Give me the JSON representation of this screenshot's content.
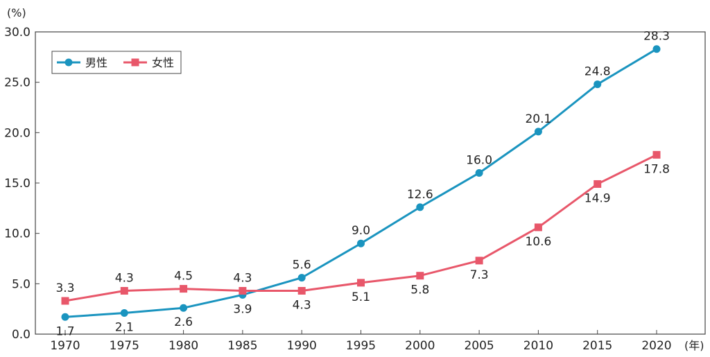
{
  "chart_data": {
    "type": "line",
    "y_unit": "(%)",
    "x_unit": "(年)",
    "categories": [
      "1970",
      "1975",
      "1980",
      "1985",
      "1990",
      "1995",
      "2000",
      "2005",
      "2010",
      "2015",
      "2020"
    ],
    "y_ticks": [
      "0.0",
      "5.0",
      "10.0",
      "15.0",
      "20.0",
      "25.0",
      "30.0"
    ],
    "ylim": [
      0,
      30
    ],
    "grid": false,
    "legend_position": "top-left",
    "series": [
      {
        "name": "男性",
        "color": "#1a94bf",
        "marker": "circle",
        "values": [
          1.7,
          2.1,
          2.6,
          3.9,
          5.6,
          9.0,
          12.6,
          16.0,
          20.1,
          24.8,
          28.3
        ],
        "labels": [
          "1.7",
          "2.1",
          "2.6",
          "3.9",
          "5.6",
          "9.0",
          "12.6",
          "16.0",
          "20.1",
          "24.8",
          "28.3"
        ]
      },
      {
        "name": "女性",
        "color": "#e8576a",
        "marker": "square",
        "values": [
          3.3,
          4.3,
          4.5,
          4.3,
          4.3,
          5.1,
          5.8,
          7.3,
          10.6,
          14.9,
          17.8
        ],
        "labels": [
          "3.3",
          "4.3",
          "4.5",
          "4.3",
          "4.3",
          "5.1",
          "5.8",
          "7.3",
          "10.6",
          "14.9",
          "17.8"
        ]
      }
    ]
  }
}
